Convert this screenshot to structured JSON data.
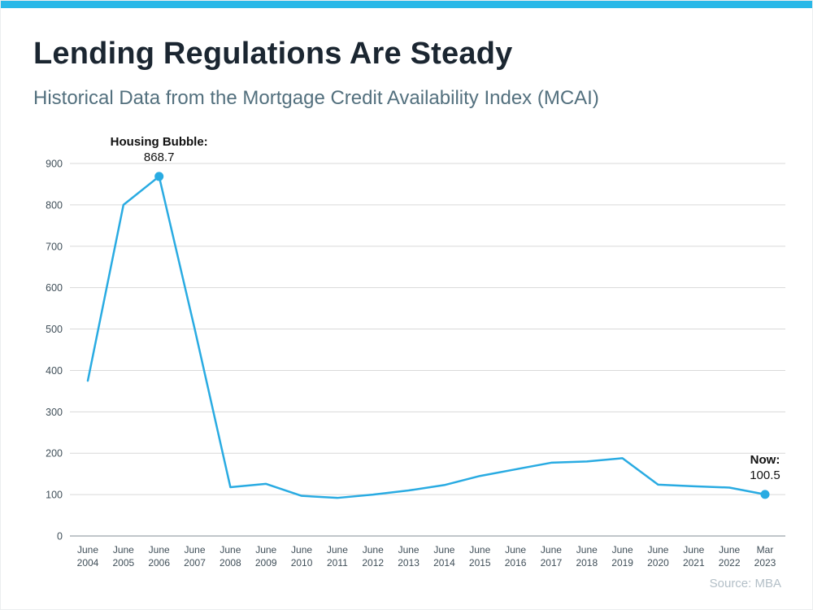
{
  "accent_color": "#29b8e8",
  "header": {
    "title": "Lending Regulations Are Steady",
    "subtitle": "Historical Data from the Mortgage Credit Availability Index (MCAI)"
  },
  "chart_data": {
    "type": "line",
    "title": "Lending Regulations Are Steady",
    "subtitle": "Historical Data from the Mortgage Credit Availability Index (MCAI)",
    "categories": [
      "June 2004",
      "June 2005",
      "June 2006",
      "June 2007",
      "June 2008",
      "June 2009",
      "June 2010",
      "June 2011",
      "June 2012",
      "June 2013",
      "June 2014",
      "June 2015",
      "June 2016",
      "June 2017",
      "June 2018",
      "June 2019",
      "June 2020",
      "June 2021",
      "June 2022",
      "Mar 2023"
    ],
    "values": [
      375,
      800,
      868.7,
      500,
      118,
      126,
      97,
      92,
      100,
      110,
      123,
      145,
      161,
      177,
      180,
      188,
      124,
      120,
      117,
      100.5
    ],
    "ylim": [
      0,
      900
    ],
    "yticks": [
      0,
      100,
      200,
      300,
      400,
      500,
      600,
      700,
      800,
      900
    ],
    "grid": true,
    "legend": false,
    "line_color": "#29abe2",
    "marker_color": "#29abe2",
    "grid_color": "#d9d9d9",
    "axis_color": "#9aa5ab",
    "tick_label_color": "#404f59",
    "annotation_color": "#111111",
    "annotations": [
      {
        "label": "Housing Bubble:",
        "value": "868.7",
        "index": 2
      },
      {
        "label": "Now:",
        "value": "100.5",
        "index": 19
      }
    ],
    "source": "Source: MBA"
  }
}
